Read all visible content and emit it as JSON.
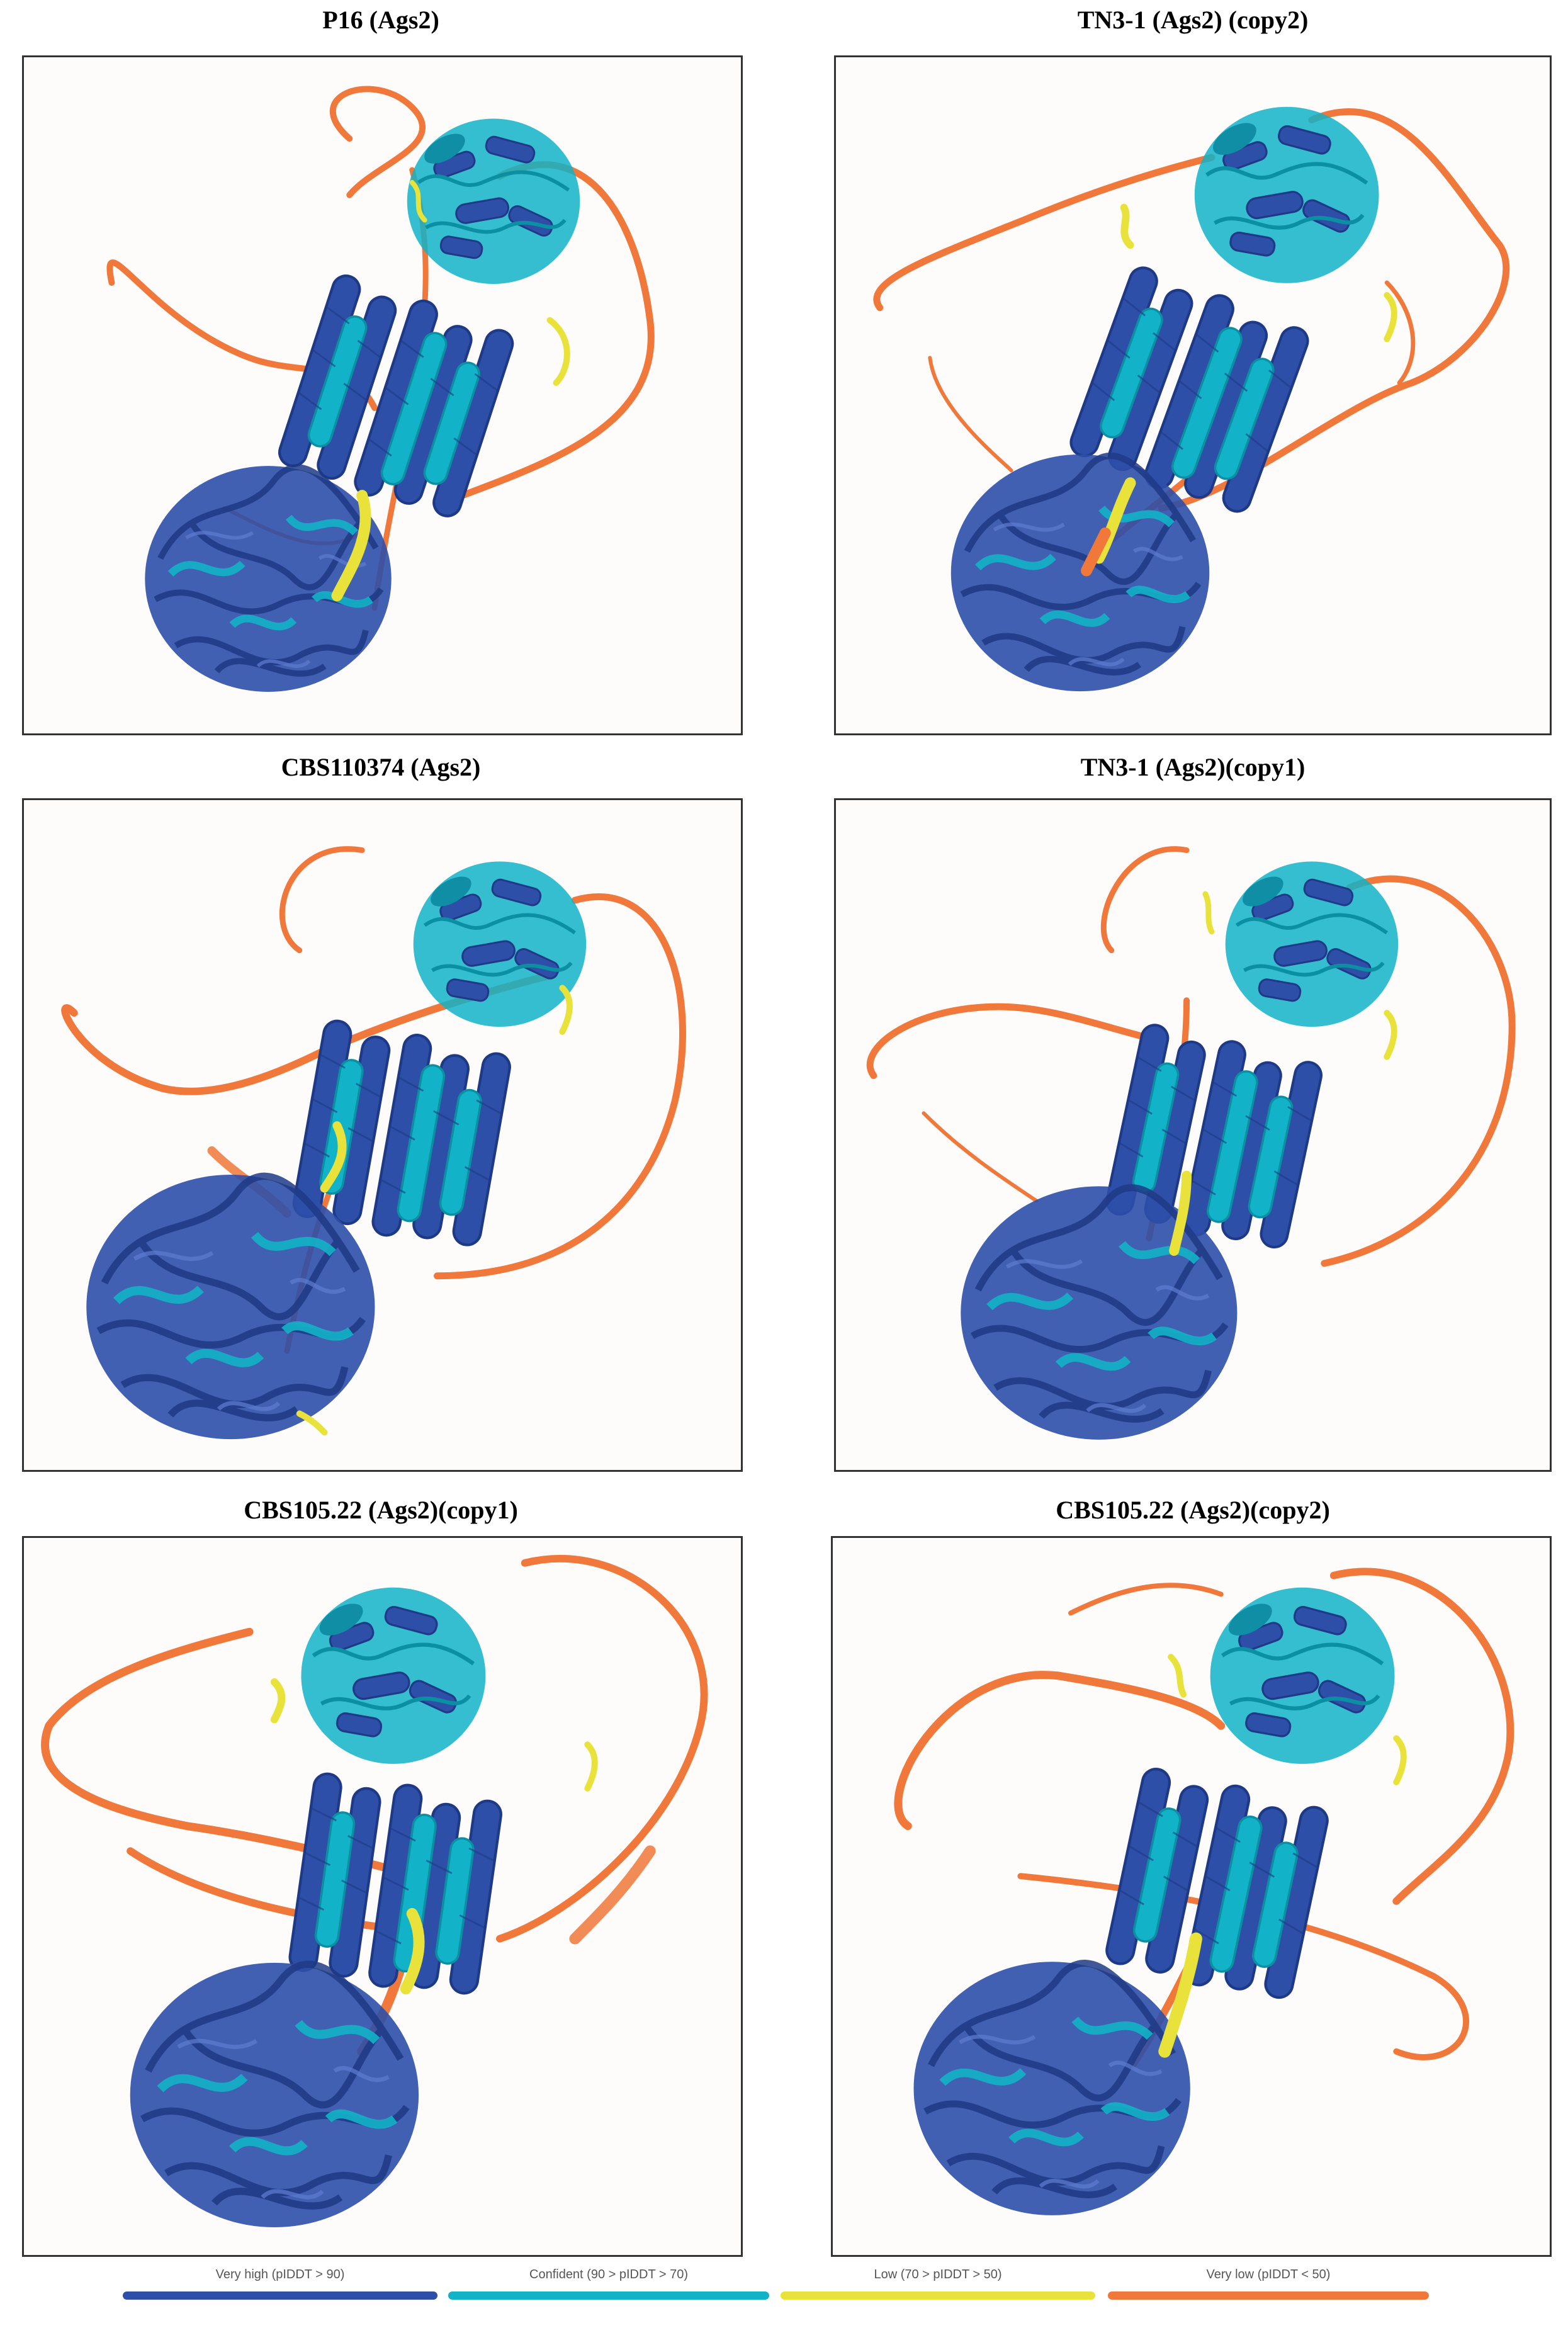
{
  "colors": {
    "very_high": "#2e4fa8",
    "confident": "#12b3c8",
    "low": "#e8e23a",
    "very_low": "#f0783a"
  },
  "panels": [
    {
      "title": "P16 (Ags2)"
    },
    {
      "title": "TN3-1 (Ags2) (copy2)"
    },
    {
      "title": "CBS110374 (Ags2)"
    },
    {
      "title": "TN3-1 (Ags2)(copy1)"
    },
    {
      "title": "CBS105.22 (Ags2)(copy1)"
    },
    {
      "title": "CBS105.22 (Ags2)(copy2)"
    }
  ],
  "legend": [
    {
      "label": "Very high (pIDDT > 90)",
      "color": "#2e4fa8"
    },
    {
      "label": "Confident (90 > pIDDT > 70)",
      "color": "#12b3c8"
    },
    {
      "label": "Low (70 > pIDDT > 50)",
      "color": "#e8e23a"
    },
    {
      "label": "Very low (pIDDT < 50)",
      "color": "#f0783a"
    }
  ]
}
